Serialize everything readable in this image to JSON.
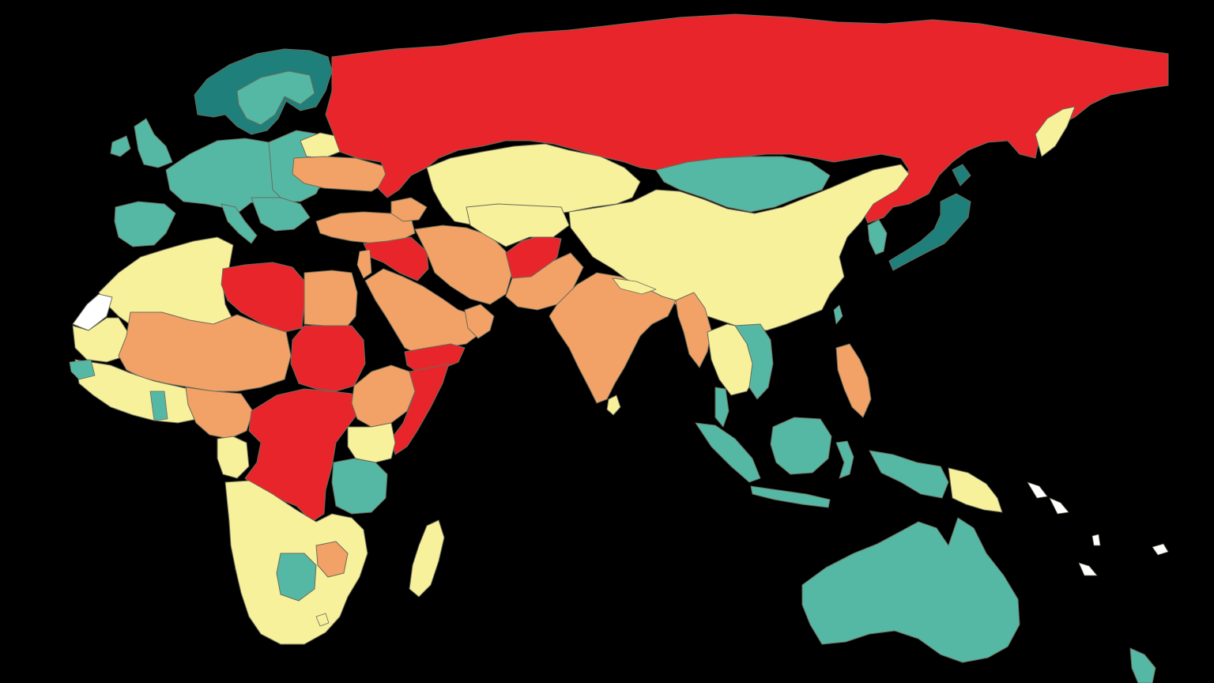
{
  "map": {
    "background": "#000000",
    "categories": [
      {
        "key": "dark-teal",
        "color": "#1f7f7a"
      },
      {
        "key": "teal",
        "color": "#55b8a5"
      },
      {
        "key": "yellow",
        "color": "#f8f19b"
      },
      {
        "key": "orange",
        "color": "#f2a266"
      },
      {
        "key": "red",
        "color": "#e8252b"
      },
      {
        "key": "white",
        "color": "#ffffff"
      }
    ],
    "regions": [
      {
        "name": "russia",
        "category": "red"
      },
      {
        "name": "scandinavia",
        "category": "dark-teal"
      },
      {
        "name": "western-europe",
        "category": "teal"
      },
      {
        "name": "eastern-europe",
        "category": "teal"
      },
      {
        "name": "uk-ireland",
        "category": "teal"
      },
      {
        "name": "iberia",
        "category": "teal"
      },
      {
        "name": "ukraine-turkey-region",
        "category": "orange"
      },
      {
        "name": "kazakhstan-central-asia",
        "category": "yellow"
      },
      {
        "name": "china",
        "category": "yellow"
      },
      {
        "name": "mongolia",
        "category": "teal"
      },
      {
        "name": "japan",
        "category": "dark-teal"
      },
      {
        "name": "korea",
        "category": "teal"
      },
      {
        "name": "iran",
        "category": "orange"
      },
      {
        "name": "afghanistan",
        "category": "red"
      },
      {
        "name": "syria-iraq",
        "category": "red"
      },
      {
        "name": "arabian-peninsula",
        "category": "orange"
      },
      {
        "name": "yemen",
        "category": "red"
      },
      {
        "name": "india-pakistan",
        "category": "orange"
      },
      {
        "name": "myanmar",
        "category": "orange"
      },
      {
        "name": "southeast-asia-mainland",
        "category": "yellow"
      },
      {
        "name": "indochina",
        "category": "teal"
      },
      {
        "name": "philippines",
        "category": "orange"
      },
      {
        "name": "indonesia-malaysia",
        "category": "teal"
      },
      {
        "name": "papua-new-guinea",
        "category": "yellow"
      },
      {
        "name": "australia",
        "category": "teal"
      },
      {
        "name": "new-zealand",
        "category": "teal"
      },
      {
        "name": "north-africa",
        "category": "yellow"
      },
      {
        "name": "libya",
        "category": "red"
      },
      {
        "name": "egypt",
        "category": "orange"
      },
      {
        "name": "sahel",
        "category": "orange"
      },
      {
        "name": "sudan",
        "category": "red"
      },
      {
        "name": "western-sahara",
        "category": "white"
      },
      {
        "name": "west-africa",
        "category": "yellow"
      },
      {
        "name": "central-african-republic-drc",
        "category": "red"
      },
      {
        "name": "south-sudan",
        "category": "red"
      },
      {
        "name": "ethiopia",
        "category": "orange"
      },
      {
        "name": "somalia",
        "category": "red"
      },
      {
        "name": "east-africa",
        "category": "yellow"
      },
      {
        "name": "tanzania",
        "category": "teal"
      },
      {
        "name": "southern-africa",
        "category": "yellow"
      },
      {
        "name": "botswana",
        "category": "teal"
      },
      {
        "name": "mozambique-part",
        "category": "orange"
      },
      {
        "name": "madagascar",
        "category": "yellow"
      },
      {
        "name": "sri-lanka",
        "category": "yellow"
      }
    ]
  }
}
